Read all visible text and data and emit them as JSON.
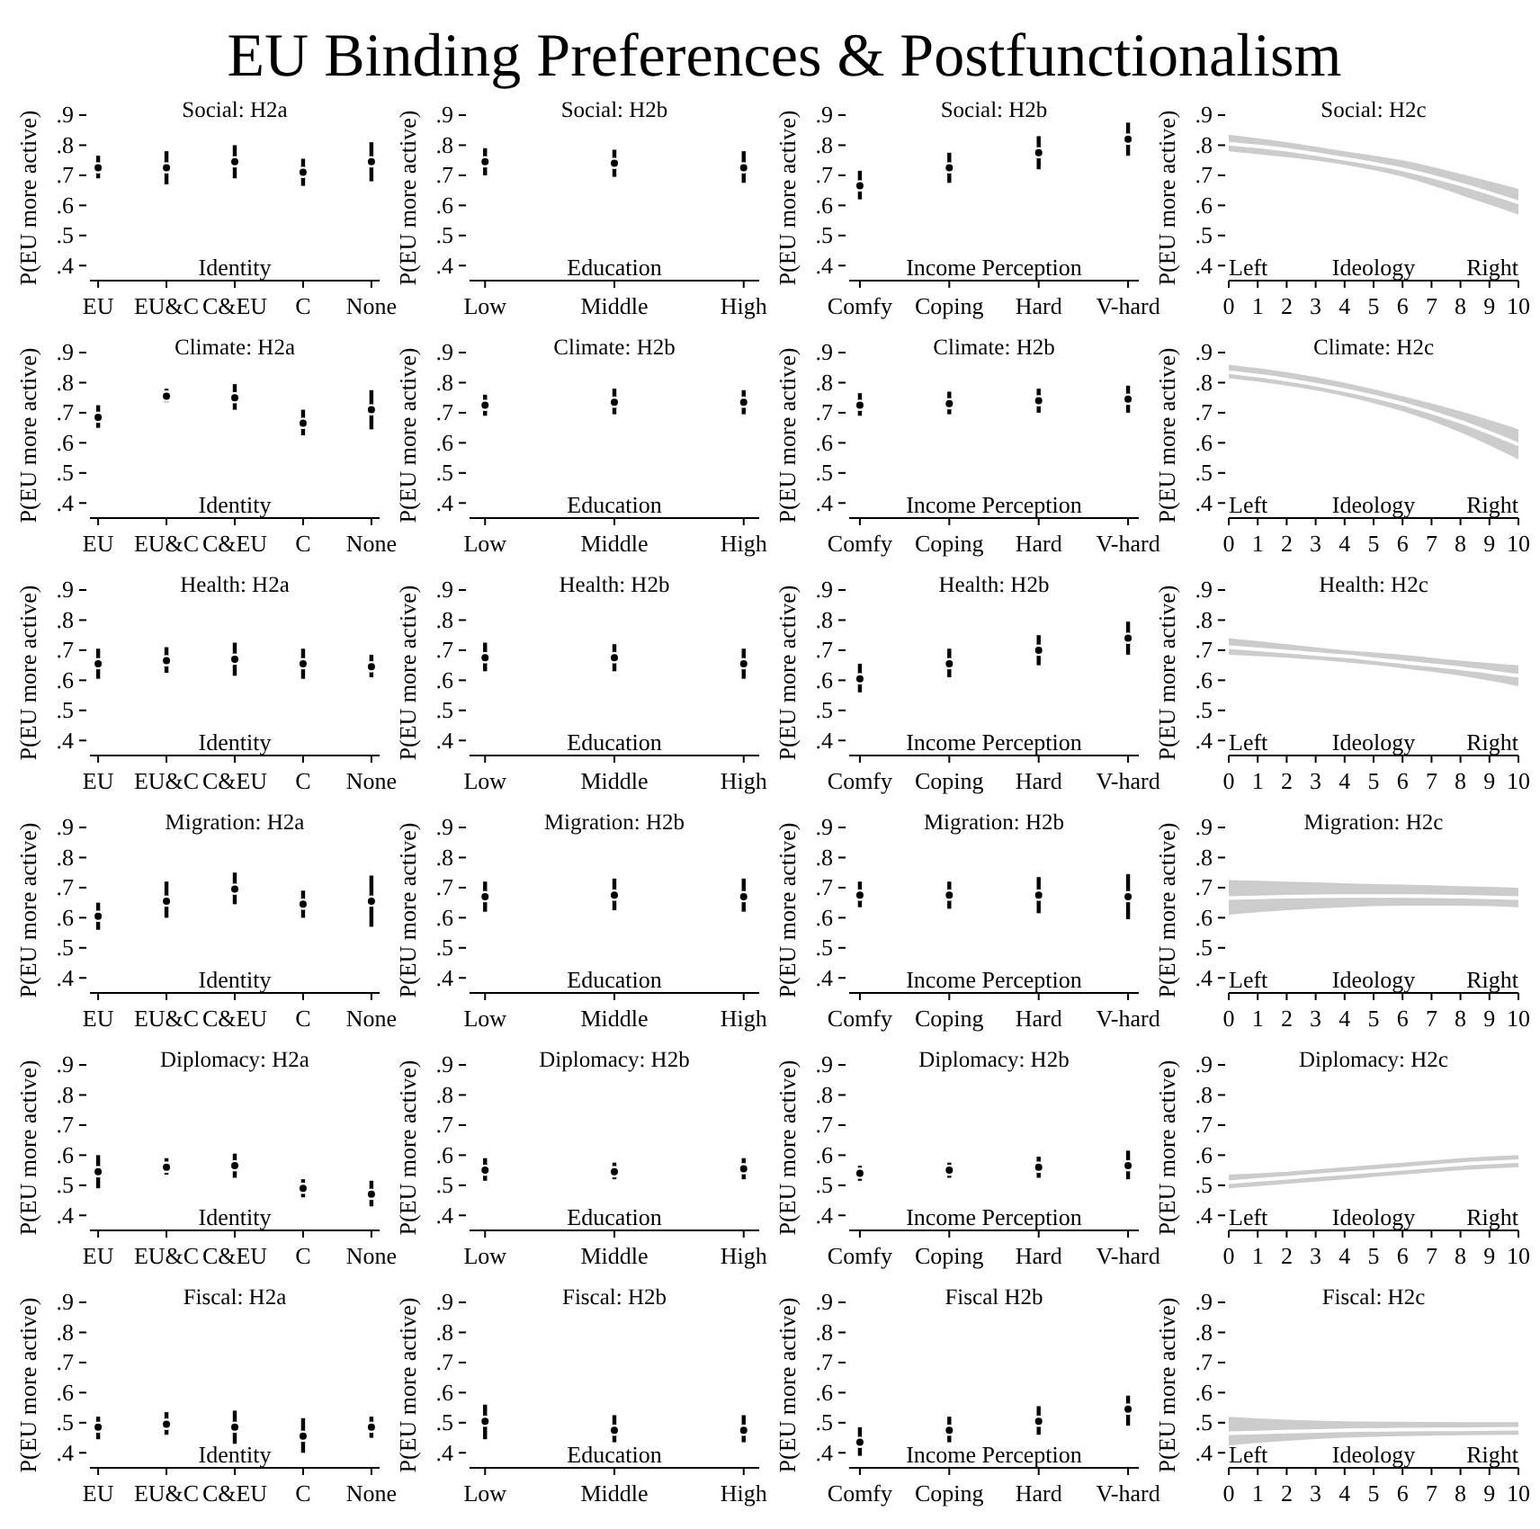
{
  "chart_data": [
    {
      "type": "other",
      "title": "EU Binding Preferences & Postfunctionalism"
    },
    {
      "type": "scatter",
      "title": "Social: H2a",
      "xlabel": "Identity",
      "ylabel": "P(EU more active)",
      "categories": [
        "EU",
        "EU&C",
        "C&EU",
        "C",
        "None"
      ],
      "values": [
        0.725,
        0.725,
        0.745,
        0.71,
        0.745
      ],
      "errors": [
        [
          0.69,
          0.765
        ],
        [
          0.67,
          0.78
        ],
        [
          0.69,
          0.8
        ],
        [
          0.665,
          0.755
        ],
        [
          0.68,
          0.81
        ]
      ],
      "ylim": [
        0.35,
        0.9
      ],
      "yticks": [
        {
          "value": 0.4,
          "label": ".4"
        },
        {
          "value": 0.5,
          "label": ".5"
        },
        {
          "value": 0.6,
          "label": ".6"
        },
        {
          "value": 0.7,
          "label": ".7"
        },
        {
          "value": 0.8,
          "label": ".8"
        },
        {
          "value": 0.9,
          "label": ".9"
        }
      ],
      "marker": "circle"
    },
    {
      "type": "scatter",
      "title": "Social: H2b",
      "xlabel": "Education",
      "ylabel": "P(EU more active)",
      "categories": [
        "Low",
        "Middle",
        "High"
      ],
      "values": [
        0.745,
        0.74,
        0.725
      ],
      "errors": [
        [
          0.7,
          0.79
        ],
        [
          0.695,
          0.785
        ],
        [
          0.675,
          0.78
        ]
      ],
      "ylim": [
        0.35,
        0.9
      ],
      "yticks": [
        {
          "value": 0.4,
          "label": ".4"
        },
        {
          "value": 0.5,
          "label": ".5"
        },
        {
          "value": 0.6,
          "label": ".6"
        },
        {
          "value": 0.7,
          "label": ".7"
        },
        {
          "value": 0.8,
          "label": ".8"
        },
        {
          "value": 0.9,
          "label": ".9"
        }
      ],
      "marker": "circle"
    },
    {
      "type": "scatter",
      "title": "Social: H2b",
      "xlabel": "Income Perception",
      "ylabel": "P(EU more active)",
      "categories": [
        "Comfy",
        "Coping",
        "Hard",
        "V-hard"
      ],
      "values": [
        0.665,
        0.725,
        0.775,
        0.82
      ],
      "errors": [
        [
          0.62,
          0.715
        ],
        [
          0.675,
          0.775
        ],
        [
          0.72,
          0.83
        ],
        [
          0.765,
          0.875
        ]
      ],
      "ylim": [
        0.35,
        0.9
      ],
      "yticks": [
        {
          "value": 0.4,
          "label": ".4"
        },
        {
          "value": 0.5,
          "label": ".5"
        },
        {
          "value": 0.6,
          "label": ".6"
        },
        {
          "value": 0.7,
          "label": ".7"
        },
        {
          "value": 0.8,
          "label": ".8"
        },
        {
          "value": 0.9,
          "label": ".9"
        }
      ],
      "marker": "circle"
    },
    {
      "type": "line",
      "title": "Social: H2c",
      "xlabel": "Ideology",
      "ylabel": "P(EU more active)",
      "annotations": [
        "Left",
        "Right"
      ],
      "series": [
        {
          "color": "#ffffff",
          "x": [
            0,
            2,
            4,
            6,
            8,
            10
          ],
          "values": [
            0.805,
            0.785,
            0.755,
            0.72,
            0.67,
            0.61
          ],
          "lower": [
            0.78,
            0.76,
            0.735,
            0.695,
            0.635,
            0.57
          ],
          "upper": [
            0.835,
            0.81,
            0.78,
            0.75,
            0.705,
            0.655
          ]
        }
      ],
      "xlim": [
        0,
        10
      ],
      "xticks": [
        0,
        1,
        2,
        3,
        4,
        5,
        6,
        7,
        8,
        9,
        10
      ],
      "ylim": [
        0.35,
        0.9
      ],
      "yticks": [
        {
          "value": 0.4,
          "label": ".4"
        },
        {
          "value": 0.5,
          "label": ".5"
        },
        {
          "value": 0.6,
          "label": ".6"
        },
        {
          "value": 0.7,
          "label": ".7"
        },
        {
          "value": 0.8,
          "label": ".8"
        },
        {
          "value": 0.9,
          "label": ".9"
        }
      ],
      "marker": "none"
    },
    {
      "type": "scatter",
      "title": "Climate: H2a",
      "xlabel": "Identity",
      "ylabel": "P(EU more active)",
      "categories": [
        "EU",
        "EU&C",
        "C&EU",
        "C",
        "None"
      ],
      "values": [
        0.685,
        0.755,
        0.75,
        0.665,
        0.71
      ],
      "errors": [
        [
          0.65,
          0.725
        ],
        [
          0.735,
          0.78
        ],
        [
          0.71,
          0.795
        ],
        [
          0.625,
          0.71
        ],
        [
          0.645,
          0.775
        ]
      ],
      "ylim": [
        0.35,
        0.9
      ],
      "yticks": [
        {
          "value": 0.4,
          "label": ".4"
        },
        {
          "value": 0.5,
          "label": ".5"
        },
        {
          "value": 0.6,
          "label": ".6"
        },
        {
          "value": 0.7,
          "label": ".7"
        },
        {
          "value": 0.8,
          "label": ".8"
        },
        {
          "value": 0.9,
          "label": ".9"
        }
      ],
      "marker": "circle"
    },
    {
      "type": "scatter",
      "title": "Climate: H2b",
      "xlabel": "Education",
      "ylabel": "P(EU more active)",
      "categories": [
        "Low",
        "Middle",
        "High"
      ],
      "values": [
        0.725,
        0.735,
        0.735
      ],
      "errors": [
        [
          0.69,
          0.76
        ],
        [
          0.695,
          0.78
        ],
        [
          0.695,
          0.775
        ]
      ],
      "ylim": [
        0.35,
        0.9
      ],
      "yticks": [
        {
          "value": 0.4,
          "label": ".4"
        },
        {
          "value": 0.5,
          "label": ".5"
        },
        {
          "value": 0.6,
          "label": ".6"
        },
        {
          "value": 0.7,
          "label": ".7"
        },
        {
          "value": 0.8,
          "label": ".8"
        },
        {
          "value": 0.9,
          "label": ".9"
        }
      ],
      "marker": "circle"
    },
    {
      "type": "scatter",
      "title": "Climate: H2b",
      "xlabel": "Income Perception",
      "ylabel": "P(EU more active)",
      "categories": [
        "Comfy",
        "Coping",
        "Hard",
        "V-hard"
      ],
      "values": [
        0.725,
        0.73,
        0.74,
        0.745
      ],
      "errors": [
        [
          0.69,
          0.765
        ],
        [
          0.695,
          0.77
        ],
        [
          0.7,
          0.78
        ],
        [
          0.7,
          0.79
        ]
      ],
      "ylim": [
        0.35,
        0.9
      ],
      "yticks": [
        {
          "value": 0.4,
          "label": ".4"
        },
        {
          "value": 0.5,
          "label": ".5"
        },
        {
          "value": 0.6,
          "label": ".6"
        },
        {
          "value": 0.7,
          "label": ".7"
        },
        {
          "value": 0.8,
          "label": ".8"
        },
        {
          "value": 0.9,
          "label": ".9"
        }
      ],
      "marker": "circle"
    },
    {
      "type": "line",
      "title": "Climate: H2c",
      "xlabel": "Ideology",
      "ylabel": "P(EU more active)",
      "annotations": [
        "Left",
        "Right"
      ],
      "series": [
        {
          "color": "#ffffff",
          "x": [
            0,
            2,
            4,
            6,
            8,
            10
          ],
          "values": [
            0.835,
            0.81,
            0.775,
            0.73,
            0.67,
            0.595
          ],
          "lower": [
            0.815,
            0.79,
            0.755,
            0.705,
            0.635,
            0.545
          ],
          "upper": [
            0.86,
            0.835,
            0.8,
            0.755,
            0.705,
            0.645
          ]
        }
      ],
      "xlim": [
        0,
        10
      ],
      "xticks": [
        0,
        1,
        2,
        3,
        4,
        5,
        6,
        7,
        8,
        9,
        10
      ],
      "ylim": [
        0.35,
        0.9
      ],
      "yticks": [
        {
          "value": 0.4,
          "label": ".4"
        },
        {
          "value": 0.5,
          "label": ".5"
        },
        {
          "value": 0.6,
          "label": ".6"
        },
        {
          "value": 0.7,
          "label": ".7"
        },
        {
          "value": 0.8,
          "label": ".8"
        },
        {
          "value": 0.9,
          "label": ".9"
        }
      ],
      "marker": "none"
    },
    {
      "type": "scatter",
      "title": "Health: H2a",
      "xlabel": "Identity",
      "ylabel": "P(EU more active)",
      "categories": [
        "EU",
        "EU&C",
        "C&EU",
        "C",
        "None"
      ],
      "values": [
        0.655,
        0.665,
        0.67,
        0.655,
        0.645
      ],
      "errors": [
        [
          0.605,
          0.705
        ],
        [
          0.625,
          0.71
        ],
        [
          0.615,
          0.725
        ],
        [
          0.605,
          0.705
        ],
        [
          0.61,
          0.685
        ]
      ],
      "ylim": [
        0.35,
        0.9
      ],
      "yticks": [
        {
          "value": 0.4,
          "label": ".4"
        },
        {
          "value": 0.5,
          "label": ".5"
        },
        {
          "value": 0.6,
          "label": ".6"
        },
        {
          "value": 0.7,
          "label": ".7"
        },
        {
          "value": 0.8,
          "label": ".8"
        },
        {
          "value": 0.9,
          "label": ".9"
        }
      ],
      "marker": "circle"
    },
    {
      "type": "scatter",
      "title": "Health: H2b",
      "xlabel": "Education",
      "ylabel": "P(EU more active)",
      "categories": [
        "Low",
        "Middle",
        "High"
      ],
      "values": [
        0.675,
        0.675,
        0.655
      ],
      "errors": [
        [
          0.63,
          0.725
        ],
        [
          0.63,
          0.72
        ],
        [
          0.605,
          0.705
        ]
      ],
      "ylim": [
        0.35,
        0.9
      ],
      "yticks": [
        {
          "value": 0.4,
          "label": ".4"
        },
        {
          "value": 0.5,
          "label": ".5"
        },
        {
          "value": 0.6,
          "label": ".6"
        },
        {
          "value": 0.7,
          "label": ".7"
        },
        {
          "value": 0.8,
          "label": ".8"
        },
        {
          "value": 0.9,
          "label": ".9"
        }
      ],
      "marker": "circle"
    },
    {
      "type": "scatter",
      "title": "Health: H2b",
      "xlabel": "Income Perception",
      "ylabel": "P(EU more active)",
      "categories": [
        "Comfy",
        "Coping",
        "Hard",
        "V-hard"
      ],
      "values": [
        0.605,
        0.655,
        0.7,
        0.74
      ],
      "errors": [
        [
          0.56,
          0.655
        ],
        [
          0.61,
          0.705
        ],
        [
          0.65,
          0.75
        ],
        [
          0.685,
          0.795
        ]
      ],
      "ylim": [
        0.35,
        0.9
      ],
      "yticks": [
        {
          "value": 0.4,
          "label": ".4"
        },
        {
          "value": 0.5,
          "label": ".5"
        },
        {
          "value": 0.6,
          "label": ".6"
        },
        {
          "value": 0.7,
          "label": ".7"
        },
        {
          "value": 0.8,
          "label": ".8"
        },
        {
          "value": 0.9,
          "label": ".9"
        }
      ],
      "marker": "circle"
    },
    {
      "type": "line",
      "title": "Health: H2c",
      "xlabel": "Ideology",
      "ylabel": "P(EU more active)",
      "annotations": [
        "Left",
        "Right"
      ],
      "series": [
        {
          "color": "#ffffff",
          "x": [
            0,
            2,
            4,
            6,
            8,
            10
          ],
          "values": [
            0.71,
            0.695,
            0.68,
            0.66,
            0.64,
            0.615
          ],
          "lower": [
            0.685,
            0.675,
            0.66,
            0.64,
            0.615,
            0.58
          ],
          "upper": [
            0.74,
            0.72,
            0.7,
            0.685,
            0.665,
            0.65
          ]
        }
      ],
      "xlim": [
        0,
        10
      ],
      "xticks": [
        0,
        1,
        2,
        3,
        4,
        5,
        6,
        7,
        8,
        9,
        10
      ],
      "ylim": [
        0.35,
        0.9
      ],
      "yticks": [
        {
          "value": 0.4,
          "label": ".4"
        },
        {
          "value": 0.5,
          "label": ".5"
        },
        {
          "value": 0.6,
          "label": ".6"
        },
        {
          "value": 0.7,
          "label": ".7"
        },
        {
          "value": 0.8,
          "label": ".8"
        },
        {
          "value": 0.9,
          "label": ".9"
        }
      ],
      "marker": "none"
    },
    {
      "type": "scatter",
      "title": "Migration: H2a",
      "xlabel": "Identity",
      "ylabel": "P(EU more active)",
      "categories": [
        "EU",
        "EU&C",
        "C&EU",
        "C",
        "None"
      ],
      "values": [
        0.605,
        0.655,
        0.695,
        0.645,
        0.655
      ],
      "errors": [
        [
          0.56,
          0.65
        ],
        [
          0.6,
          0.72
        ],
        [
          0.645,
          0.75
        ],
        [
          0.6,
          0.69
        ],
        [
          0.57,
          0.74
        ]
      ],
      "ylim": [
        0.35,
        0.9
      ],
      "yticks": [
        {
          "value": 0.4,
          "label": ".4"
        },
        {
          "value": 0.5,
          "label": ".5"
        },
        {
          "value": 0.6,
          "label": ".6"
        },
        {
          "value": 0.7,
          "label": ".7"
        },
        {
          "value": 0.8,
          "label": ".8"
        },
        {
          "value": 0.9,
          "label": ".9"
        }
      ],
      "marker": "circle"
    },
    {
      "type": "scatter",
      "title": "Migration: H2b",
      "xlabel": "Education",
      "ylabel": "P(EU more active)",
      "categories": [
        "Low",
        "Middle",
        "High"
      ],
      "values": [
        0.67,
        0.675,
        0.67
      ],
      "errors": [
        [
          0.62,
          0.72
        ],
        [
          0.625,
          0.73
        ],
        [
          0.62,
          0.73
        ]
      ],
      "ylim": [
        0.35,
        0.9
      ],
      "yticks": [
        {
          "value": 0.4,
          "label": ".4"
        },
        {
          "value": 0.5,
          "label": ".5"
        },
        {
          "value": 0.6,
          "label": ".6"
        },
        {
          "value": 0.7,
          "label": ".7"
        },
        {
          "value": 0.8,
          "label": ".8"
        },
        {
          "value": 0.9,
          "label": ".9"
        }
      ],
      "marker": "circle"
    },
    {
      "type": "scatter",
      "title": "Migration: H2b",
      "xlabel": "Income Perception",
      "ylabel": "P(EU more active)",
      "categories": [
        "Comfy",
        "Coping",
        "Hard",
        "V-hard"
      ],
      "values": [
        0.675,
        0.675,
        0.675,
        0.67
      ],
      "errors": [
        [
          0.635,
          0.72
        ],
        [
          0.63,
          0.72
        ],
        [
          0.615,
          0.735
        ],
        [
          0.595,
          0.745
        ]
      ],
      "ylim": [
        0.35,
        0.9
      ],
      "yticks": [
        {
          "value": 0.4,
          "label": ".4"
        },
        {
          "value": 0.5,
          "label": ".5"
        },
        {
          "value": 0.6,
          "label": ".6"
        },
        {
          "value": 0.7,
          "label": ".7"
        },
        {
          "value": 0.8,
          "label": ".8"
        },
        {
          "value": 0.9,
          "label": ".9"
        }
      ],
      "marker": "circle"
    },
    {
      "type": "line",
      "title": "Migration: H2c",
      "xlabel": "Ideology",
      "ylabel": "P(EU more active)",
      "annotations": [
        "Left",
        "Right"
      ],
      "series": [
        {
          "color": "#ffffff",
          "x": [
            0,
            2,
            4,
            6,
            8,
            10
          ],
          "values": [
            0.665,
            0.67,
            0.672,
            0.672,
            0.67,
            0.665
          ],
          "lower": [
            0.61,
            0.625,
            0.635,
            0.64,
            0.64,
            0.635
          ],
          "upper": [
            0.725,
            0.72,
            0.715,
            0.71,
            0.705,
            0.7
          ]
        }
      ],
      "xlim": [
        0,
        10
      ],
      "xticks": [
        0,
        1,
        2,
        3,
        4,
        5,
        6,
        7,
        8,
        9,
        10
      ],
      "ylim": [
        0.35,
        0.9
      ],
      "yticks": [
        {
          "value": 0.4,
          "label": ".4"
        },
        {
          "value": 0.5,
          "label": ".5"
        },
        {
          "value": 0.6,
          "label": ".6"
        },
        {
          "value": 0.7,
          "label": ".7"
        },
        {
          "value": 0.8,
          "label": ".8"
        },
        {
          "value": 0.9,
          "label": ".9"
        }
      ],
      "marker": "none"
    },
    {
      "type": "scatter",
      "title": "Diplomacy: H2a",
      "xlabel": "Identity",
      "ylabel": "P(EU more active)",
      "categories": [
        "EU",
        "EU&C",
        "C&EU",
        "C",
        "None"
      ],
      "values": [
        0.545,
        0.56,
        0.565,
        0.49,
        0.47
      ],
      "errors": [
        [
          0.49,
          0.6
        ],
        [
          0.535,
          0.59
        ],
        [
          0.525,
          0.605
        ],
        [
          0.46,
          0.52
        ],
        [
          0.43,
          0.515
        ]
      ],
      "ylim": [
        0.35,
        0.9
      ],
      "yticks": [
        {
          "value": 0.4,
          "label": ".4"
        },
        {
          "value": 0.5,
          "label": ".5"
        },
        {
          "value": 0.6,
          "label": ".6"
        },
        {
          "value": 0.7,
          "label": ".7"
        },
        {
          "value": 0.8,
          "label": ".8"
        },
        {
          "value": 0.9,
          "label": ".9"
        }
      ],
      "marker": "circle"
    },
    {
      "type": "scatter",
      "title": "Diplomacy: H2b",
      "xlabel": "Education",
      "ylabel": "P(EU more active)",
      "categories": [
        "Low",
        "Middle",
        "High"
      ],
      "values": [
        0.55,
        0.545,
        0.555
      ],
      "errors": [
        [
          0.515,
          0.59
        ],
        [
          0.52,
          0.575
        ],
        [
          0.52,
          0.59
        ]
      ],
      "ylim": [
        0.35,
        0.9
      ],
      "yticks": [
        {
          "value": 0.4,
          "label": ".4"
        },
        {
          "value": 0.5,
          "label": ".5"
        },
        {
          "value": 0.6,
          "label": ".6"
        },
        {
          "value": 0.7,
          "label": ".7"
        },
        {
          "value": 0.8,
          "label": ".8"
        },
        {
          "value": 0.9,
          "label": ".9"
        }
      ],
      "marker": "circle"
    },
    {
      "type": "scatter",
      "title": "Diplomacy: H2b",
      "xlabel": "Income Perception",
      "ylabel": "P(EU more active)",
      "categories": [
        "Comfy",
        "Coping",
        "Hard",
        "V-hard"
      ],
      "values": [
        0.54,
        0.55,
        0.56,
        0.565
      ],
      "errors": [
        [
          0.515,
          0.565
        ],
        [
          0.525,
          0.575
        ],
        [
          0.525,
          0.595
        ],
        [
          0.52,
          0.615
        ]
      ],
      "ylim": [
        0.35,
        0.9
      ],
      "yticks": [
        {
          "value": 0.4,
          "label": ".4"
        },
        {
          "value": 0.5,
          "label": ".5"
        },
        {
          "value": 0.6,
          "label": ".6"
        },
        {
          "value": 0.7,
          "label": ".7"
        },
        {
          "value": 0.8,
          "label": ".8"
        },
        {
          "value": 0.9,
          "label": ".9"
        }
      ],
      "marker": "circle"
    },
    {
      "type": "line",
      "title": "Diplomacy: H2c",
      "xlabel": "Ideology",
      "ylabel": "P(EU more active)",
      "annotations": [
        "Left",
        "Right"
      ],
      "series": [
        {
          "color": "#ffffff",
          "x": [
            0,
            2,
            4,
            6,
            8,
            10
          ],
          "values": [
            0.51,
            0.525,
            0.54,
            0.555,
            0.57,
            0.58
          ],
          "lower": [
            0.49,
            0.505,
            0.52,
            0.535,
            0.55,
            0.56
          ],
          "upper": [
            0.535,
            0.545,
            0.56,
            0.575,
            0.59,
            0.6
          ]
        }
      ],
      "xlim": [
        0,
        10
      ],
      "xticks": [
        0,
        1,
        2,
        3,
        4,
        5,
        6,
        7,
        8,
        9,
        10
      ],
      "ylim": [
        0.35,
        0.9
      ],
      "yticks": [
        {
          "value": 0.4,
          "label": ".4"
        },
        {
          "value": 0.5,
          "label": ".5"
        },
        {
          "value": 0.6,
          "label": ".6"
        },
        {
          "value": 0.7,
          "label": ".7"
        },
        {
          "value": 0.8,
          "label": ".8"
        },
        {
          "value": 0.9,
          "label": ".9"
        }
      ],
      "marker": "none"
    },
    {
      "type": "scatter",
      "title": "Fiscal: H2a",
      "xlabel": "Identity",
      "ylabel": "P(EU more active)",
      "categories": [
        "EU",
        "EU&C",
        "C&EU",
        "C",
        "None"
      ],
      "values": [
        0.485,
        0.495,
        0.485,
        0.455,
        0.485
      ],
      "errors": [
        [
          0.445,
          0.52
        ],
        [
          0.46,
          0.535
        ],
        [
          0.43,
          0.54
        ],
        [
          0.4,
          0.515
        ],
        [
          0.45,
          0.52
        ]
      ],
      "ylim": [
        0.35,
        0.9
      ],
      "yticks": [
        {
          "value": 0.4,
          "label": ".4"
        },
        {
          "value": 0.5,
          "label": ".5"
        },
        {
          "value": 0.6,
          "label": ".6"
        },
        {
          "value": 0.7,
          "label": ".7"
        },
        {
          "value": 0.8,
          "label": ".8"
        },
        {
          "value": 0.9,
          "label": ".9"
        }
      ],
      "marker": "circle"
    },
    {
      "type": "scatter",
      "title": "Fiscal: H2b",
      "xlabel": "Education",
      "ylabel": "P(EU more active)",
      "categories": [
        "Low",
        "Middle",
        "High"
      ],
      "values": [
        0.505,
        0.475,
        0.475
      ],
      "errors": [
        [
          0.445,
          0.56
        ],
        [
          0.435,
          0.525
        ],
        [
          0.435,
          0.525
        ]
      ],
      "ylim": [
        0.35,
        0.9
      ],
      "yticks": [
        {
          "value": 0.4,
          "label": ".4"
        },
        {
          "value": 0.5,
          "label": ".5"
        },
        {
          "value": 0.6,
          "label": ".6"
        },
        {
          "value": 0.7,
          "label": ".7"
        },
        {
          "value": 0.8,
          "label": ".8"
        },
        {
          "value": 0.9,
          "label": ".9"
        }
      ],
      "marker": "circle"
    },
    {
      "type": "scatter",
      "title": "Fiscal H2b",
      "xlabel": "Income Perception",
      "ylabel": "P(EU more active)",
      "categories": [
        "Comfy",
        "Coping",
        "Hard",
        "V-hard"
      ],
      "values": [
        0.435,
        0.475,
        0.505,
        0.545
      ],
      "errors": [
        [
          0.39,
          0.485
        ],
        [
          0.435,
          0.52
        ],
        [
          0.46,
          0.555
        ],
        [
          0.49,
          0.59
        ]
      ],
      "ylim": [
        0.35,
        0.9
      ],
      "yticks": [
        {
          "value": 0.4,
          "label": ".4"
        },
        {
          "value": 0.5,
          "label": ".5"
        },
        {
          "value": 0.6,
          "label": ".6"
        },
        {
          "value": 0.7,
          "label": ".7"
        },
        {
          "value": 0.8,
          "label": ".8"
        },
        {
          "value": 0.9,
          "label": ".9"
        }
      ],
      "marker": "circle"
    },
    {
      "type": "line",
      "title": "Fiscal: H2c",
      "xlabel": "Ideology",
      "ylabel": "P(EU more active)",
      "annotations": [
        "Left",
        "Right"
      ],
      "series": [
        {
          "color": "#ffffff",
          "x": [
            0,
            2,
            4,
            6,
            8,
            10
          ],
          "values": [
            0.465,
            0.47,
            0.475,
            0.477,
            0.478,
            0.48
          ],
          "lower": [
            0.425,
            0.44,
            0.45,
            0.455,
            0.458,
            0.46
          ],
          "upper": [
            0.52,
            0.51,
            0.505,
            0.503,
            0.502,
            0.502
          ]
        }
      ],
      "xlim": [
        0,
        10
      ],
      "xticks": [
        0,
        1,
        2,
        3,
        4,
        5,
        6,
        7,
        8,
        9,
        10
      ],
      "ylim": [
        0.35,
        0.9
      ],
      "yticks": [
        {
          "value": 0.4,
          "label": ".4"
        },
        {
          "value": 0.5,
          "label": ".5"
        },
        {
          "value": 0.6,
          "label": ".6"
        },
        {
          "value": 0.7,
          "label": ".7"
        },
        {
          "value": 0.8,
          "label": ".8"
        },
        {
          "value": 0.9,
          "label": ".9"
        }
      ],
      "marker": "none"
    }
  ]
}
